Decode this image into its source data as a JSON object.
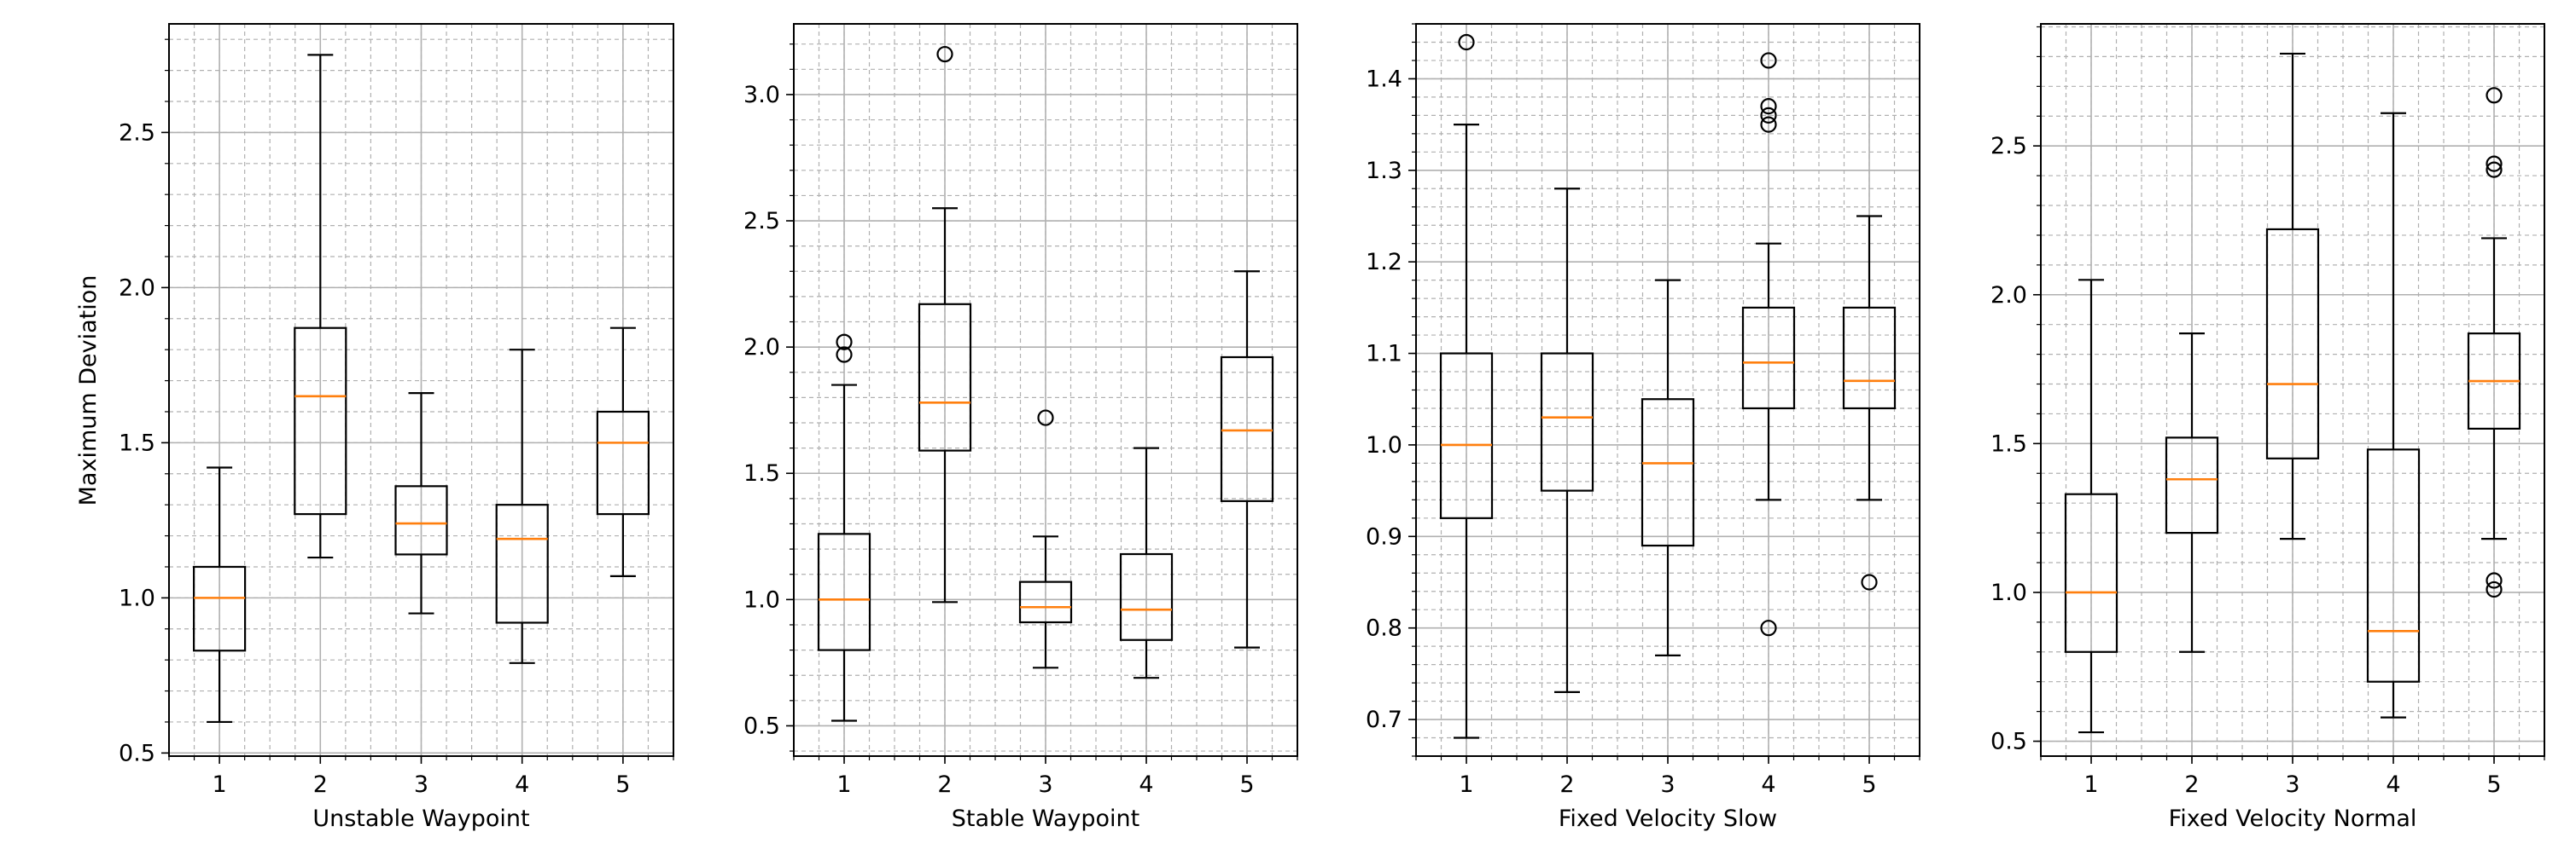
{
  "figure": {
    "ylabel": "Maximum Deviation"
  },
  "chart_data": [
    {
      "type": "box",
      "xlabel": "Unstable Waypoint",
      "categories": [
        "1",
        "2",
        "3",
        "4",
        "5"
      ],
      "ylim": [
        0.49,
        2.85
      ],
      "yticks": [
        0.5,
        1.0,
        1.5,
        2.0,
        2.5
      ],
      "ytick_labels": [
        "0.5",
        "1.0",
        "1.5",
        "2.0",
        "2.5"
      ],
      "grid": true,
      "boxes": [
        {
          "whislo": 0.6,
          "q1": 0.83,
          "med": 1.0,
          "q3": 1.1,
          "whishi": 1.42,
          "fliers": []
        },
        {
          "whislo": 1.13,
          "q1": 1.27,
          "med": 1.65,
          "q3": 1.87,
          "whishi": 2.75,
          "fliers": []
        },
        {
          "whislo": 0.95,
          "q1": 1.14,
          "med": 1.24,
          "q3": 1.36,
          "whishi": 1.66,
          "fliers": []
        },
        {
          "whislo": 0.79,
          "q1": 0.92,
          "med": 1.19,
          "q3": 1.3,
          "whishi": 1.8,
          "fliers": []
        },
        {
          "whislo": 1.07,
          "q1": 1.27,
          "med": 1.5,
          "q3": 1.6,
          "whishi": 1.87,
          "fliers": []
        }
      ]
    },
    {
      "type": "box",
      "xlabel": "Stable Waypoint",
      "categories": [
        "1",
        "2",
        "3",
        "4",
        "5"
      ],
      "ylim": [
        0.38,
        3.28
      ],
      "yticks": [
        0.5,
        1.0,
        1.5,
        2.0,
        2.5,
        3.0
      ],
      "ytick_labels": [
        "0.5",
        "1.0",
        "1.5",
        "2.0",
        "2.5",
        "3.0"
      ],
      "grid": true,
      "boxes": [
        {
          "whislo": 0.52,
          "q1": 0.8,
          "med": 1.0,
          "q3": 1.26,
          "whishi": 1.85,
          "fliers": [
            1.97,
            2.02
          ]
        },
        {
          "whislo": 0.99,
          "q1": 1.59,
          "med": 1.78,
          "q3": 2.17,
          "whishi": 2.55,
          "fliers": [
            3.16
          ]
        },
        {
          "whislo": 0.73,
          "q1": 0.91,
          "med": 0.97,
          "q3": 1.07,
          "whishi": 1.25,
          "fliers": [
            1.72
          ]
        },
        {
          "whislo": 0.69,
          "q1": 0.84,
          "med": 0.96,
          "q3": 1.18,
          "whishi": 1.6,
          "fliers": []
        },
        {
          "whislo": 0.81,
          "q1": 1.39,
          "med": 1.67,
          "q3": 1.96,
          "whishi": 2.3,
          "fliers": []
        }
      ]
    },
    {
      "type": "box",
      "xlabel": "Fixed Velocity Slow",
      "categories": [
        "1",
        "2",
        "3",
        "4",
        "5"
      ],
      "ylim": [
        0.66,
        1.46
      ],
      "yticks": [
        0.7,
        0.8,
        0.9,
        1.0,
        1.1,
        1.2,
        1.3,
        1.4
      ],
      "ytick_labels": [
        "0.7",
        "0.8",
        "0.9",
        "1.0",
        "1.1",
        "1.2",
        "1.3",
        "1.4"
      ],
      "grid": true,
      "boxes": [
        {
          "whislo": 0.68,
          "q1": 0.92,
          "med": 1.0,
          "q3": 1.1,
          "whishi": 1.35,
          "fliers": [
            1.44
          ]
        },
        {
          "whislo": 0.73,
          "q1": 0.95,
          "med": 1.03,
          "q3": 1.1,
          "whishi": 1.28,
          "fliers": []
        },
        {
          "whislo": 0.77,
          "q1": 0.89,
          "med": 0.98,
          "q3": 1.05,
          "whishi": 1.18,
          "fliers": []
        },
        {
          "whislo": 0.94,
          "q1": 1.04,
          "med": 1.09,
          "q3": 1.15,
          "whishi": 1.22,
          "fliers": [
            0.8,
            1.35,
            1.36,
            1.37,
            1.42
          ]
        },
        {
          "whislo": 0.94,
          "q1": 1.04,
          "med": 1.07,
          "q3": 1.15,
          "whishi": 1.25,
          "fliers": [
            0.85
          ]
        }
      ]
    },
    {
      "type": "box",
      "xlabel": "Fixed Velocity Normal",
      "categories": [
        "1",
        "2",
        "3",
        "4",
        "5"
      ],
      "ylim": [
        0.45,
        2.91
      ],
      "yticks": [
        0.5,
        1.0,
        1.5,
        2.0,
        2.5
      ],
      "ytick_labels": [
        "0.5",
        "1.0",
        "1.5",
        "2.0",
        "2.5"
      ],
      "grid": true,
      "boxes": [
        {
          "whislo": 0.53,
          "q1": 0.8,
          "med": 1.0,
          "q3": 1.33,
          "whishi": 2.05,
          "fliers": []
        },
        {
          "whislo": 0.8,
          "q1": 1.2,
          "med": 1.38,
          "q3": 1.52,
          "whishi": 1.87,
          "fliers": []
        },
        {
          "whislo": 1.18,
          "q1": 1.45,
          "med": 1.7,
          "q3": 2.22,
          "whishi": 2.81,
          "fliers": []
        },
        {
          "whislo": 0.58,
          "q1": 0.7,
          "med": 0.87,
          "q3": 1.48,
          "whishi": 2.61,
          "fliers": []
        },
        {
          "whislo": 1.18,
          "q1": 1.55,
          "med": 1.71,
          "q3": 1.87,
          "whishi": 2.19,
          "fliers": [
            1.01,
            1.04,
            2.42,
            2.44,
            2.67
          ]
        }
      ]
    }
  ],
  "colors": {
    "box": "#000000",
    "median": "#ff7f0e",
    "grid_major": "#b0b0b0",
    "grid_minor": "#b0b0b0"
  }
}
